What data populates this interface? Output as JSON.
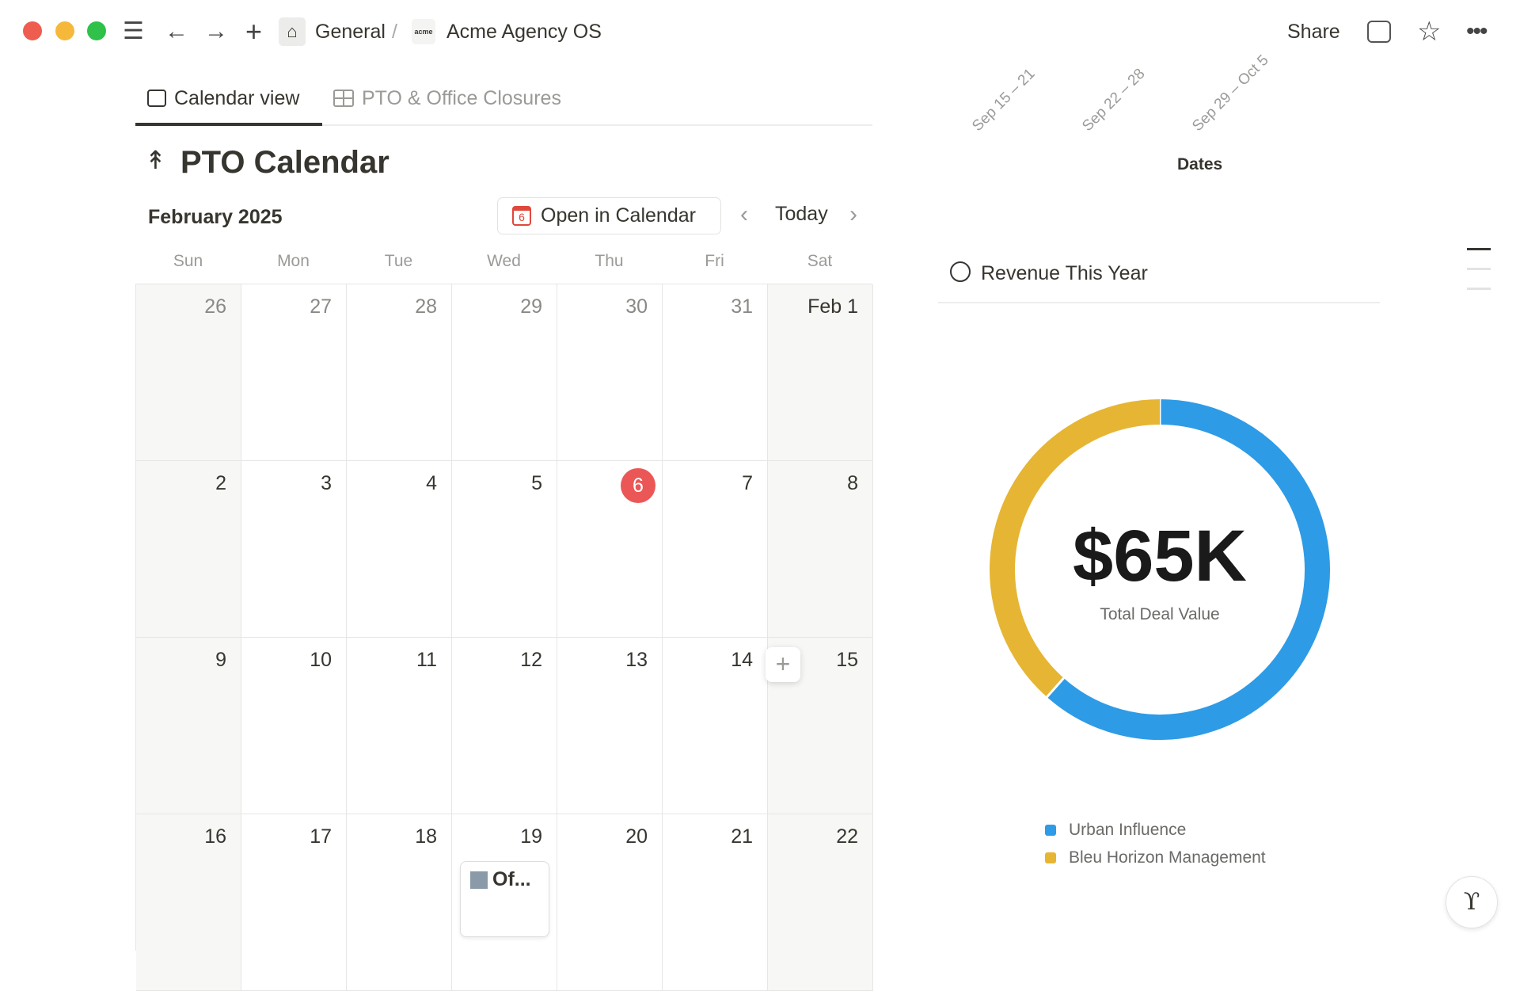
{
  "topbar": {
    "breadcrumb": [
      "General",
      "/",
      "Acme Agency OS"
    ],
    "workspace_logo": "acme",
    "share": "Share",
    "icons": [
      "menu-icon",
      "back-arrow-icon",
      "forward-arrow-icon",
      "plus-icon",
      "home-icon",
      "comment-icon",
      "star-icon",
      "more-icon"
    ]
  },
  "tabs": [
    {
      "label": "Calendar view",
      "active": true
    },
    {
      "label": "PTO & Office Closures",
      "active": false
    }
  ],
  "calendar": {
    "title": "PTO Calendar",
    "month": "February 2025",
    "open_button": "Open in Calendar",
    "open_icon_day": "6",
    "today": "Today",
    "weekdays": [
      "Sun",
      "Mon",
      "Tue",
      "Wed",
      "Thu",
      "Fri",
      "Sat"
    ],
    "weeks": [
      [
        "26",
        "27",
        "28",
        "29",
        "30",
        "31",
        "Feb 1"
      ],
      [
        "2",
        "3",
        "4",
        "5",
        "6",
        "7",
        "8"
      ],
      [
        "9",
        "10",
        "11",
        "12",
        "13",
        "14",
        "15"
      ],
      [
        "16",
        "17",
        "18",
        "19",
        "20",
        "21",
        "22"
      ]
    ],
    "today_date": "6",
    "today_color": "#eb5757",
    "event": {
      "label": "Of...",
      "date": "19",
      "icon": "office-building-icon"
    }
  },
  "dates_chart": {
    "tick_labels": [
      "Sep 15 – 21",
      "Sep 22 – 28",
      "Sep 29 – Oct 5"
    ],
    "xlabel": "Dates"
  },
  "revenue": {
    "title": "Revenue This Year",
    "total": "$65K",
    "subtitle": "Total Deal Value"
  },
  "chart_data": {
    "type": "pie",
    "title": "Revenue This Year",
    "donut": true,
    "center_label": "$65K",
    "center_sublabel": "Total Deal Value",
    "series": [
      {
        "name": "Urban Influence",
        "value": 40,
        "color": "#2e9be6"
      },
      {
        "name": "Bleu Horizon Management",
        "value": 25,
        "color": "#e6b533"
      }
    ],
    "legend": "bottom"
  }
}
